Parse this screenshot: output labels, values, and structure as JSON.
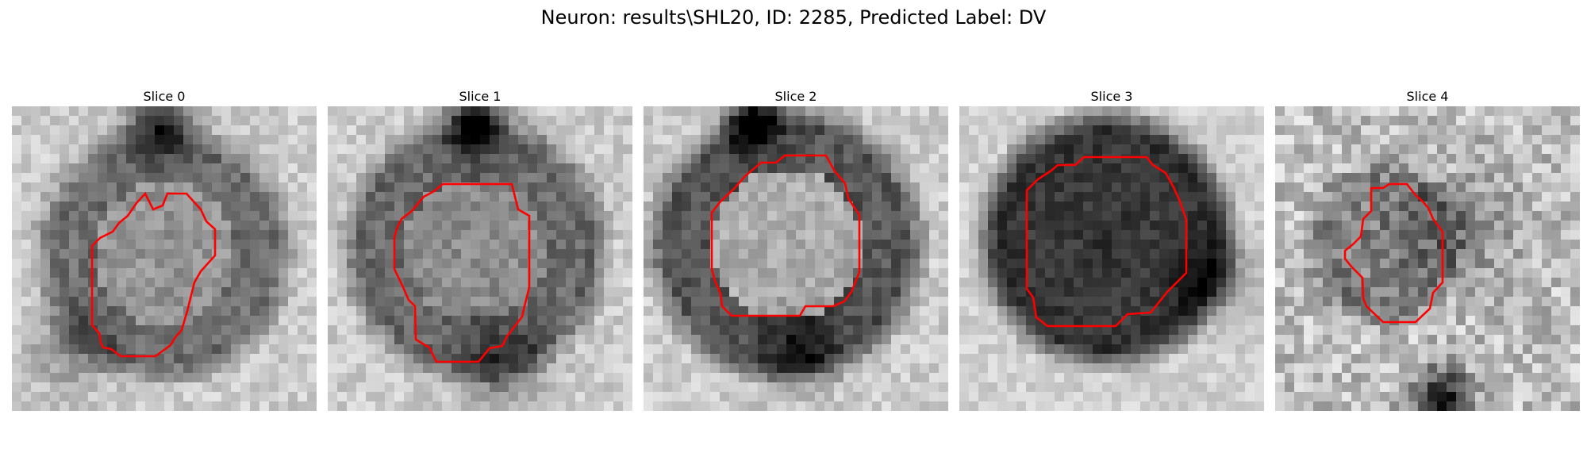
{
  "figure": {
    "title": "Neuron: results\\SHL20, ID: 2285, Predicted Label: DV"
  },
  "panels": [
    {
      "title": "Slice 0"
    },
    {
      "title": "Slice 1"
    },
    {
      "title": "Slice 2"
    },
    {
      "title": "Slice 3"
    },
    {
      "title": "Slice 4"
    }
  ],
  "colors": {
    "outline": "#ff0000",
    "colormap": "gray"
  }
}
